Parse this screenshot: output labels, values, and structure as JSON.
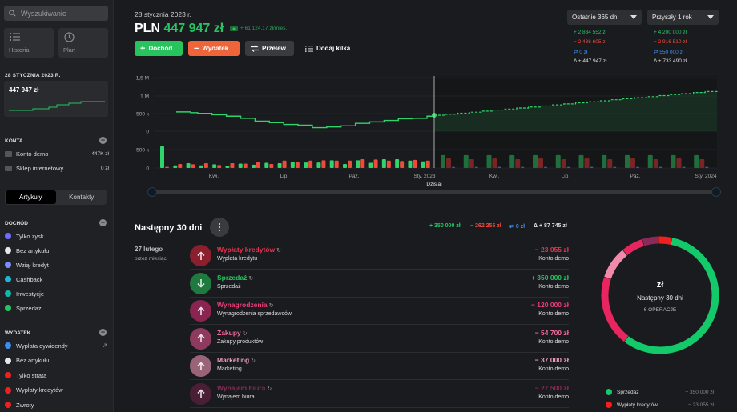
{
  "sidebar": {
    "search_placeholder": "Wyszukiwanie",
    "quick": [
      {
        "label": "Historia",
        "icon": "list-icon"
      },
      {
        "label": "Plan",
        "icon": "clock-icon"
      }
    ],
    "date": "28 STYCZNIA 2023 R.",
    "balance": "447 947 zł",
    "accounts_title": "KONTA",
    "accounts": [
      {
        "name": "Konto demo",
        "value": "447K zł"
      },
      {
        "name": "Sklep internetowy",
        "value": "0 zł"
      }
    ],
    "tabs": [
      "Artykuły",
      "Kontakty"
    ],
    "income_title": "DOCHÓD",
    "income": [
      {
        "name": "Tylko zysk",
        "color": "#6c6cff"
      },
      {
        "name": "Bez artykułu",
        "color": "#e8e8e8"
      },
      {
        "name": "Wziął kredyt",
        "color": "#7a8cff"
      },
      {
        "name": "Cashback",
        "color": "#19b8d4"
      },
      {
        "name": "Inwestycje",
        "color": "#12b8a8"
      },
      {
        "name": "Sprzedaż",
        "color": "#22c55e"
      }
    ],
    "expense_title": "WYDATEK",
    "expense": [
      {
        "name": "Wypłata dywidendy",
        "color": "#3b8ef0"
      },
      {
        "name": "Bez artykułu",
        "color": "#e8e8e8"
      },
      {
        "name": "Tylko strata",
        "color": "#ef2020"
      },
      {
        "name": "Wypłaty kredytów",
        "color": "#ef2020"
      },
      {
        "name": "Zwroty",
        "color": "#ef2020"
      }
    ]
  },
  "header": {
    "date": "28 stycznia 2023 r.",
    "currency": "PLN",
    "balance": "447 947 zł",
    "monthly": "+ 61 124,17 zł/mies.",
    "buttons": {
      "income": "Dochód",
      "expense": "Wydatek",
      "transfer": "Przelew",
      "add_many": "Dodaj kilka"
    },
    "range_left": "Ostatnie 365 dni",
    "range_right": "Przyszły 1 rok",
    "stats_left": {
      "income": "+ 2 884 552 zł",
      "expense": "− 2 436 605 zł",
      "transfer": "0 zł",
      "delta": "Δ + 447 947 zł"
    },
    "stats_right": {
      "income": "+ 4 200 000 zł",
      "expense": "− 2 916 510 zł",
      "transfer": "550 000 zł",
      "delta": "Δ + 733 490 zł"
    }
  },
  "chart_data": {
    "type": "bar",
    "y_ticks": [
      "1,5 M",
      "1 M",
      "500 k",
      "0",
      "500 k",
      "0"
    ],
    "x_ticks": [
      "Kwi.",
      "Lip",
      "Paź.",
      "Sty. 2023",
      "Kwi.",
      "Lip",
      "Paź.",
      "Sty. 2024"
    ],
    "today_label": "Dzisiaj",
    "balance_past": [
      540,
      540,
      520,
      500,
      500,
      460,
      460,
      420,
      420,
      360,
      360,
      280,
      280,
      240,
      240,
      190,
      190,
      170,
      170,
      100,
      100,
      120,
      120,
      150,
      150,
      220,
      220,
      260,
      260,
      300,
      300,
      350,
      350,
      360,
      360,
      420,
      447
    ],
    "balance_future_end": 1140,
    "income_past": [
      590,
      70,
      130,
      70,
      100,
      60,
      120,
      90,
      140,
      130,
      170,
      150,
      150,
      210,
      110,
      210,
      140,
      240,
      240,
      200,
      180
    ],
    "expense_past": [
      30,
      110,
      100,
      130,
      80,
      130,
      120,
      170,
      110,
      200,
      160,
      200,
      210,
      200,
      200,
      240,
      230,
      200,
      190,
      220,
      200
    ],
    "income_future": [
      350,
      350,
      350,
      350,
      350,
      350,
      350,
      350,
      350,
      350,
      350,
      350
    ],
    "expense_future": [
      260,
      240,
      260,
      240,
      260,
      240,
      260,
      240,
      260,
      240,
      260,
      240
    ],
    "transfer_future": [
      30,
      30,
      30,
      30,
      30,
      30,
      30,
      30,
      30,
      30,
      30,
      30
    ]
  },
  "next30": {
    "title": "Następny 30 dni",
    "sum_income": "+ 350 000 zł",
    "sum_expense": "− 262 255 zł",
    "sum_transfer": "0 zł",
    "sum_delta": "Δ + 87 745 zł",
    "day": "27 lutego",
    "day_sub": "przez miesiąc",
    "rows": [
      {
        "title": "Wypłaty kredytów",
        "sub": "Wypłata kredytu",
        "amount": "− 23 055 zł",
        "account": "Konto demo",
        "color": "#ef2f4f",
        "circle": "#8c1f2e",
        "dir": "up"
      },
      {
        "title": "Sprzedaż",
        "sub": "Sprzedaż",
        "amount": "+ 350 000 zł",
        "account": "Konto demo",
        "color": "#22c55e",
        "circle": "#1e7a3e",
        "dir": "down"
      },
      {
        "title": "Wynagrodzenia",
        "sub": "Wynagrodzenia sprzedawców",
        "amount": "− 120 000 zł",
        "account": "Konto demo",
        "color": "#e83e76",
        "circle": "#8a2450",
        "dir": "up"
      },
      {
        "title": "Zakupy",
        "sub": "Zakupy produktów",
        "amount": "− 54 700 zł",
        "account": "Konto demo",
        "color": "#f06a9e",
        "circle": "#8d3a5e",
        "dir": "up"
      },
      {
        "title": "Marketing",
        "sub": "Marketing",
        "amount": "− 37 000 zł",
        "account": "Konto demo",
        "color": "#f3a0c0",
        "circle": "#9a6478",
        "dir": "up"
      },
      {
        "title": "Wynajem biura",
        "sub": "Wynajem biura",
        "amount": "− 27 500 zł",
        "account": "Konto demo",
        "color": "#8a2a5a",
        "circle": "#4a1f36",
        "dir": "up"
      }
    ],
    "donut": {
      "currency": "zł",
      "title": "Następny 30 dni",
      "count": "6 OPERACJE",
      "segments": [
        {
          "value": 350000,
          "color": "#14c96a"
        },
        {
          "value": 120000,
          "color": "#e8255e"
        },
        {
          "value": 54700,
          "color": "#f08aaa"
        },
        {
          "value": 37000,
          "color": "#e8255e"
        },
        {
          "value": 27500,
          "color": "#8a2a5a"
        },
        {
          "value": 23055,
          "color": "#ef2020"
        }
      ]
    },
    "legend": [
      {
        "name": "Sprzedaż",
        "value": "+ 350 000 zł",
        "color": "#14c96a"
      },
      {
        "name": "Wypłaty kredytów",
        "value": "− 23 055 zł",
        "color": "#ef2020"
      }
    ]
  }
}
